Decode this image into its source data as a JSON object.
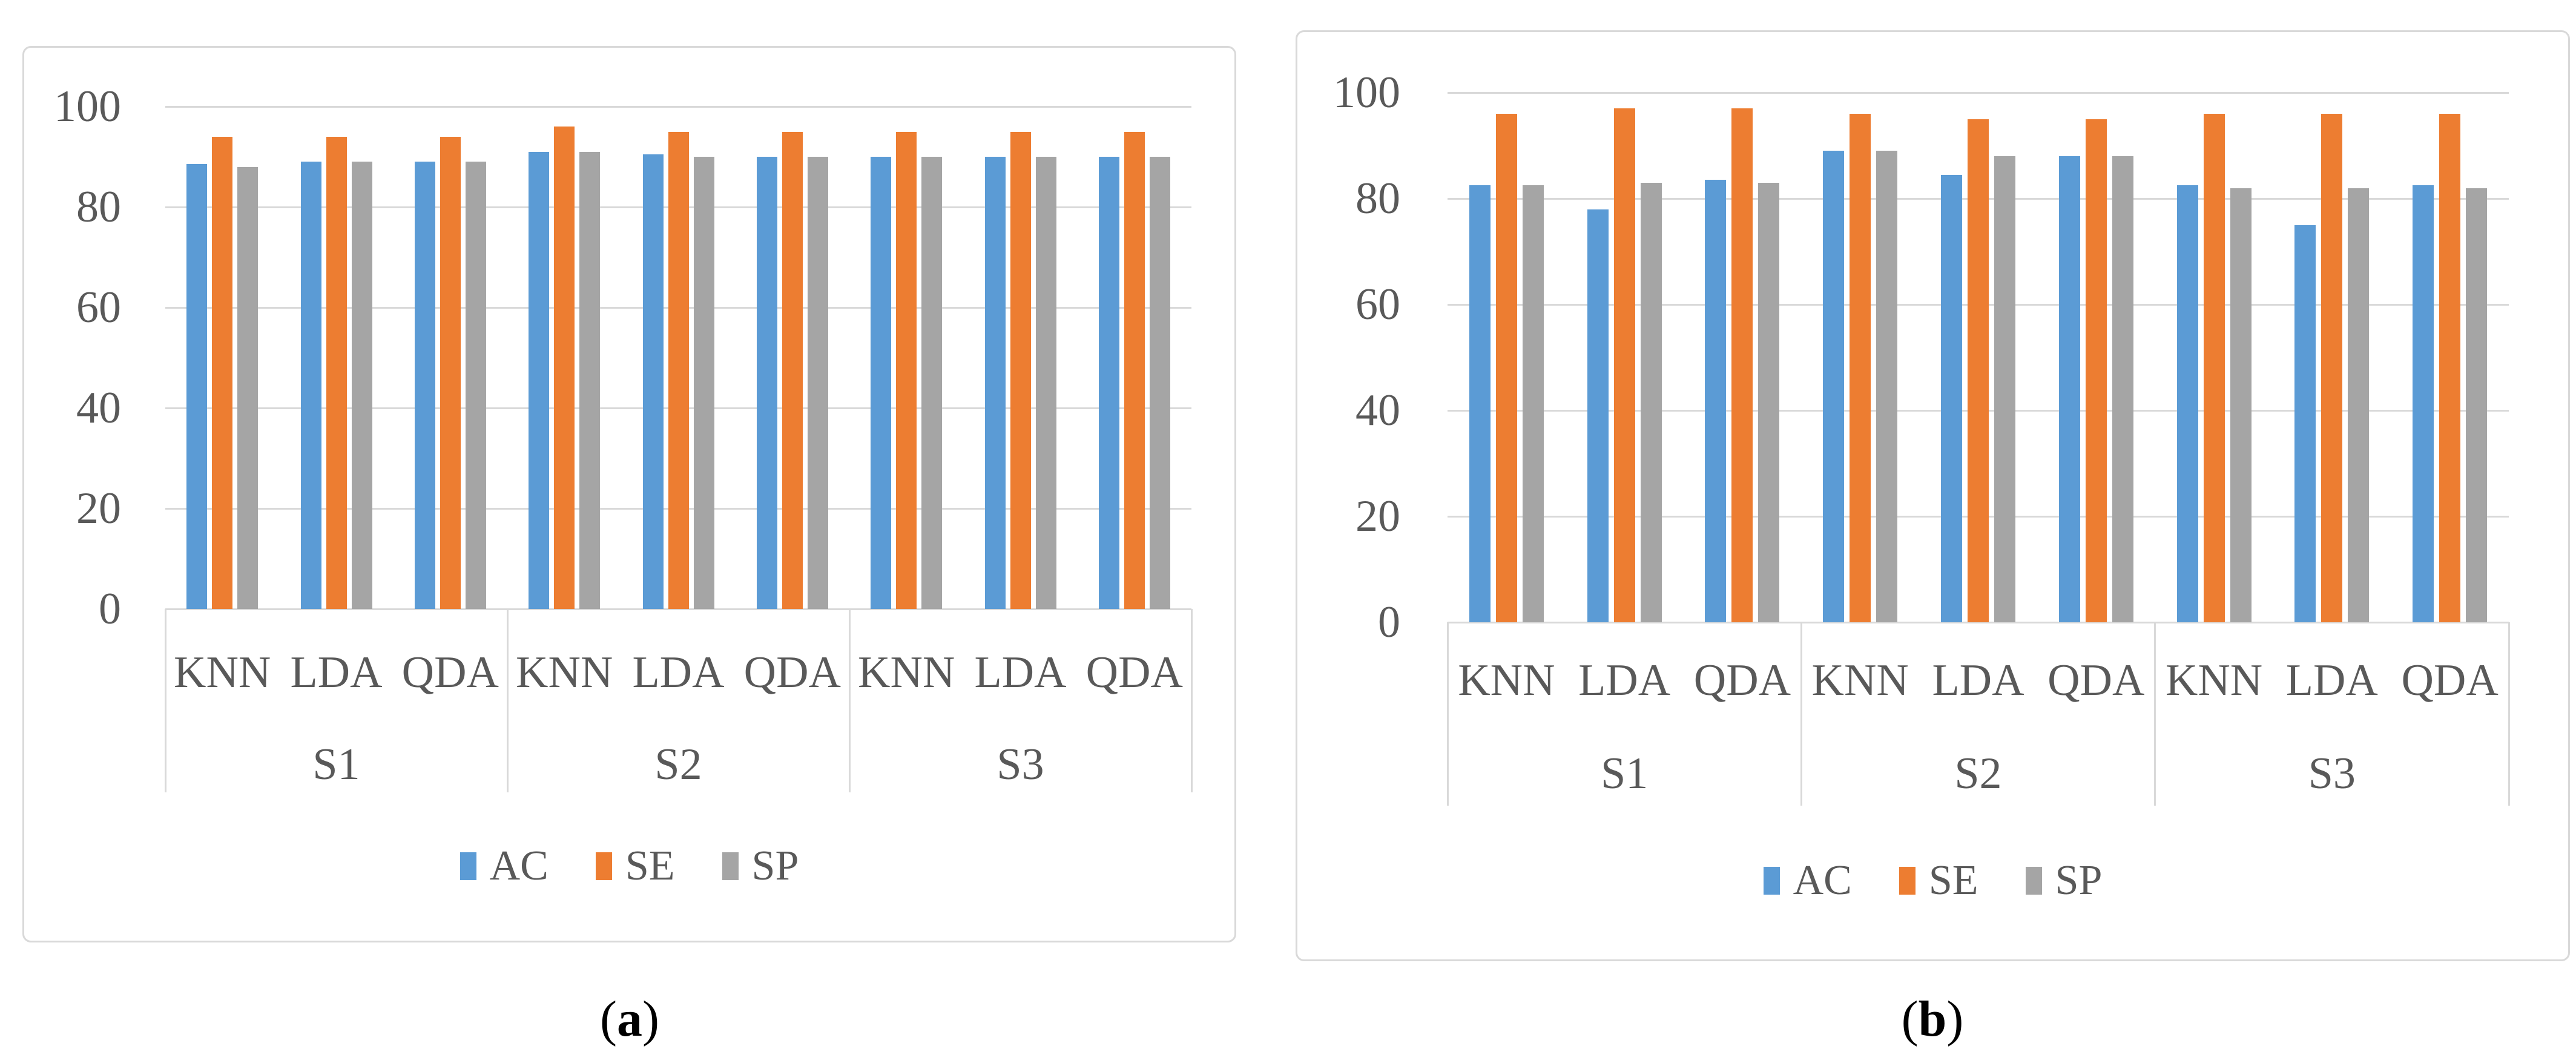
{
  "figure": {
    "captions": {
      "open": "(",
      "a_letter": "a",
      "b_letter": "b",
      "close": ")"
    },
    "colors": {
      "AC": "#5B9BD5",
      "SE": "#ED7D31",
      "SP": "#A5A5A5",
      "gridline": "#D9D9D9",
      "panel_border": "#D9D9D9",
      "axis_text": "#595959",
      "caption_text": "#000000"
    }
  },
  "chart_data": [
    {
      "id": "a",
      "type": "bar",
      "title": "",
      "xlabel": "",
      "ylabel": "",
      "ylim": [
        0,
        100
      ],
      "yticks": [
        0,
        20,
        40,
        60,
        80,
        100
      ],
      "grid": true,
      "legend_position": "bottom",
      "groups": [
        "S1",
        "S2",
        "S3"
      ],
      "categories": [
        "KNN",
        "LDA",
        "QDA",
        "KNN",
        "LDA",
        "QDA",
        "KNN",
        "LDA",
        "QDA"
      ],
      "series": [
        {
          "name": "AC",
          "color": "#5B9BD5",
          "values": [
            88.5,
            89,
            89,
            91,
            90.5,
            90,
            90,
            90,
            90
          ]
        },
        {
          "name": "SE",
          "color": "#ED7D31",
          "values": [
            94,
            94,
            94,
            96,
            95,
            95,
            95,
            95,
            95
          ]
        },
        {
          "name": "SP",
          "color": "#A5A5A5",
          "values": [
            88,
            89,
            89,
            91,
            90,
            90,
            90,
            90,
            90
          ]
        }
      ]
    },
    {
      "id": "b",
      "type": "bar",
      "title": "",
      "xlabel": "",
      "ylabel": "",
      "ylim": [
        0,
        100
      ],
      "yticks": [
        0,
        20,
        40,
        60,
        80,
        100
      ],
      "grid": true,
      "legend_position": "bottom",
      "groups": [
        "S1",
        "S2",
        "S3"
      ],
      "categories": [
        "KNN",
        "LDA",
        "QDA",
        "KNN",
        "LDA",
        "QDA",
        "KNN",
        "LDA",
        "QDA"
      ],
      "series": [
        {
          "name": "AC",
          "color": "#5B9BD5",
          "values": [
            82.5,
            78,
            83.5,
            89,
            84.5,
            88,
            82.5,
            75,
            82.5
          ]
        },
        {
          "name": "SE",
          "color": "#ED7D31",
          "values": [
            96,
            97,
            97,
            96,
            95,
            95,
            96,
            96,
            96
          ]
        },
        {
          "name": "SP",
          "color": "#A5A5A5",
          "values": [
            82.5,
            83,
            83,
            89,
            88,
            88,
            82,
            82,
            82
          ]
        }
      ]
    }
  ]
}
